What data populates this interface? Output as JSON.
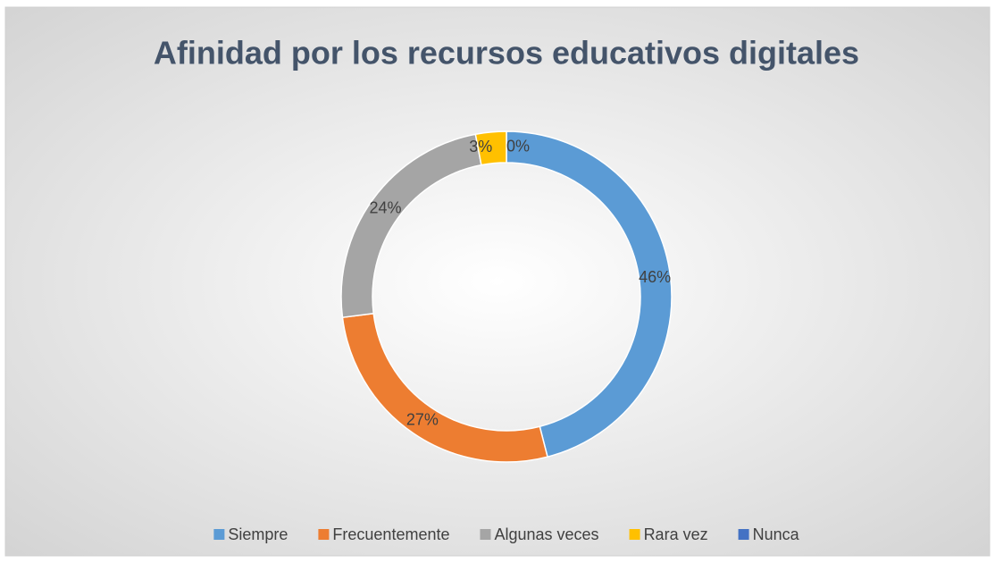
{
  "chart_data": {
    "type": "doughnut",
    "title": "Afinidad por los recursos educativos digitales",
    "categories": [
      "Siempre",
      "Frecuentemente",
      "Algunas veces",
      "Rara vez",
      "Nunca"
    ],
    "values": [
      46,
      27,
      24,
      3,
      0
    ],
    "value_labels": [
      "46%",
      "27%",
      "24%",
      "3%",
      "0%"
    ],
    "colors": [
      "#5b9bd5",
      "#ed7d31",
      "#a5a5a5",
      "#ffc000",
      "#4472c4"
    ],
    "legend": "bottom"
  }
}
